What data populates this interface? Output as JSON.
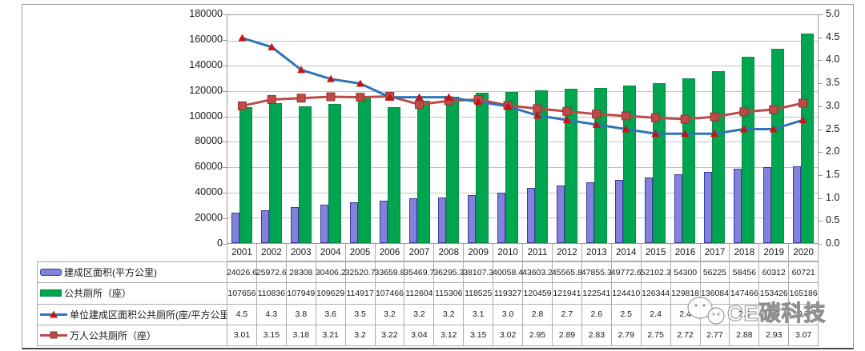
{
  "watermark": {
    "text": "CE碳科技"
  },
  "chart_data": {
    "type": "bar+line combo",
    "title": "",
    "years": [
      "2001",
      "2002",
      "2003",
      "2004",
      "2005",
      "2006",
      "2007",
      "2008",
      "2009",
      "2010",
      "2011",
      "2012",
      "2013",
      "2014",
      "2015",
      "2016",
      "2017",
      "2018",
      "2019",
      "2020"
    ],
    "left_axis": {
      "min": 0,
      "max": 180000,
      "step": 20000,
      "ticks": [
        "180000",
        "160000",
        "140000",
        "120000",
        "100000",
        "80000",
        "60000",
        "40000",
        "20000",
        "0"
      ]
    },
    "right_axis": {
      "min": 0.0,
      "max": 5.0,
      "step": 0.5,
      "ticks": [
        "5.0",
        "4.5",
        "4.0",
        "3.5",
        "3.0",
        "2.5",
        "2.0",
        "1.5",
        "1.0",
        "0.5",
        "0.0"
      ]
    },
    "grid": true,
    "legend_position": "table-left",
    "series": [
      {
        "name": "建成区面积(平方公里)",
        "type": "bar",
        "axis": "left",
        "color": "#8282dc",
        "border_color": "#3a3a9e",
        "values": [
          24026.6,
          25972.6,
          28308,
          30406.2,
          32520.7,
          33659.8,
          35469.7,
          36295.3,
          38107.3,
          40058.4,
          43603.2,
          45565.8,
          47855.3,
          49772.6,
          52102.3,
          54300,
          56225,
          58456,
          60312,
          60721
        ]
      },
      {
        "name": "公共厕所（座）",
        "type": "bar",
        "axis": "left",
        "color": "#00a550",
        "border_color": "#0c8a44",
        "values": [
          107656,
          110836,
          107949,
          109629,
          114917,
          107466,
          112604,
          115306,
          118525,
          119327,
          120459,
          121941,
          122541,
          124410,
          126344,
          129818,
          136084,
          147466,
          153426,
          165186
        ]
      },
      {
        "name": "单位建成区面积公共厕所(座/平方公里)",
        "type": "line",
        "axis": "right",
        "color": "#2e75b6",
        "marker": "triangle",
        "marker_color": "#cc1111",
        "values": [
          4.5,
          4.3,
          3.8,
          3.6,
          3.5,
          3.2,
          3.2,
          3.2,
          3.1,
          3.0,
          2.8,
          2.7,
          2.6,
          2.5,
          2.4,
          2.4,
          2.4,
          2.5,
          2.5,
          2.7
        ]
      },
      {
        "name": "万人公共厕所（座）",
        "type": "line",
        "axis": "right",
        "color": "#be4b48",
        "marker": "square",
        "marker_color": "#be4b48",
        "marker_border": "#8c3836",
        "values": [
          3.01,
          3.15,
          3.18,
          3.21,
          3.2,
          3.22,
          3.04,
          3.12,
          3.15,
          3.02,
          2.95,
          2.89,
          2.83,
          2.79,
          2.75,
          2.72,
          2.77,
          2.88,
          2.93,
          3.07
        ]
      }
    ]
  },
  "table": {
    "rows": [
      {
        "label": "建成区面积(平方公里)",
        "swatch": "bar-blue",
        "values": [
          "24026.6",
          "25972.6",
          "28308",
          "30406.2",
          "32520.7",
          "33659.8",
          "35469.7",
          "36295.3",
          "38107.3",
          "40058.4",
          "43603.2",
          "45565.8",
          "47855.3",
          "49772.6",
          "52102.3",
          "54300",
          "56225",
          "58456",
          "60312",
          "60721"
        ]
      },
      {
        "label": "公共厕所（座）",
        "swatch": "bar-green",
        "values": [
          "107656",
          "110836",
          "107949",
          "109629",
          "114917",
          "107466",
          "112604",
          "115306",
          "118525",
          "119327",
          "120459",
          "121941",
          "122541",
          "124410",
          "126344",
          "129818",
          "136084",
          "147466",
          "153426",
          "165186"
        ]
      },
      {
        "label": "单位建成区面积公共厕所(座/平方公里)",
        "swatch": "line-blue",
        "values": [
          "4.5",
          "4.3",
          "3.8",
          "3.6",
          "3.5",
          "3.2",
          "3.2",
          "3.2",
          "3.1",
          "3.0",
          "2.8",
          "2.7",
          "2.6",
          "2.5",
          "2.4",
          "2.4",
          "2.4",
          "2.5",
          "2.5",
          "2.7"
        ]
      },
      {
        "label": "万人公共厕所（座）",
        "swatch": "line-red",
        "values": [
          "3.01",
          "3.15",
          "3.18",
          "3.21",
          "3.2",
          "3.22",
          "3.04",
          "3.12",
          "3.15",
          "3.02",
          "2.95",
          "2.89",
          "2.83",
          "2.79",
          "2.75",
          "2.72",
          "2.77",
          "2.88",
          "2.93",
          "3.07"
        ]
      }
    ]
  }
}
